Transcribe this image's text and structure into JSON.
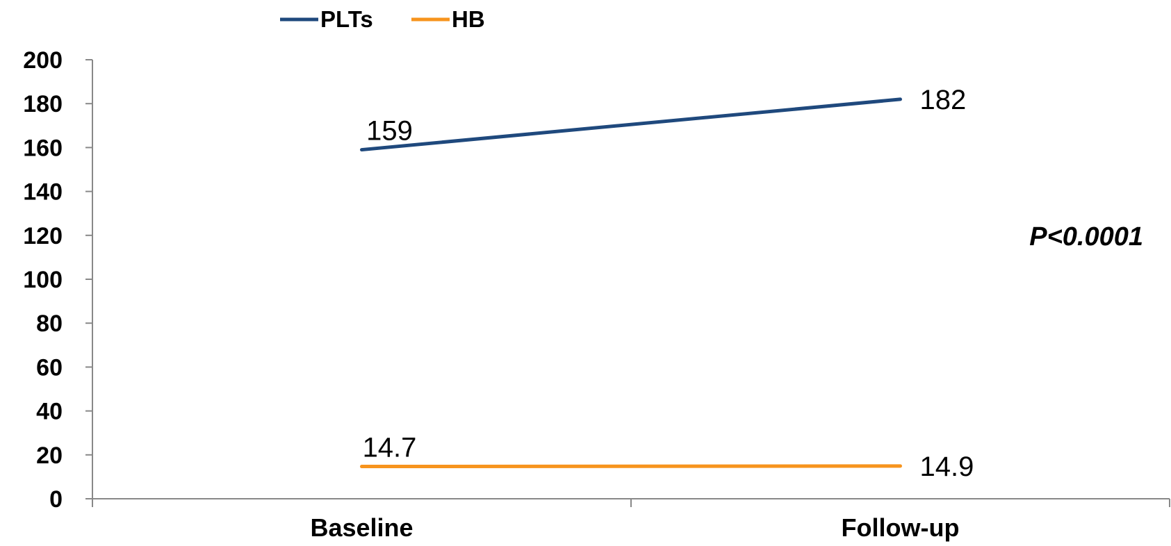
{
  "chart_data": {
    "type": "line",
    "categories": [
      "Baseline",
      "Follow-up"
    ],
    "series": [
      {
        "name": "PLTs",
        "values": [
          159,
          182
        ],
        "labels": [
          "159",
          "182"
        ],
        "color": "#1f497d"
      },
      {
        "name": "HB",
        "values": [
          14.7,
          14.9
        ],
        "labels": [
          "14.7",
          "14.9"
        ],
        "color": "#f7941d"
      }
    ],
    "ylim": [
      0,
      200
    ],
    "yticks": [
      "0",
      "20",
      "40",
      "60",
      "80",
      "100",
      "120",
      "140",
      "160",
      "180",
      "200"
    ],
    "annotation": "P<0.0001",
    "legend_position": "top",
    "grid": false
  }
}
